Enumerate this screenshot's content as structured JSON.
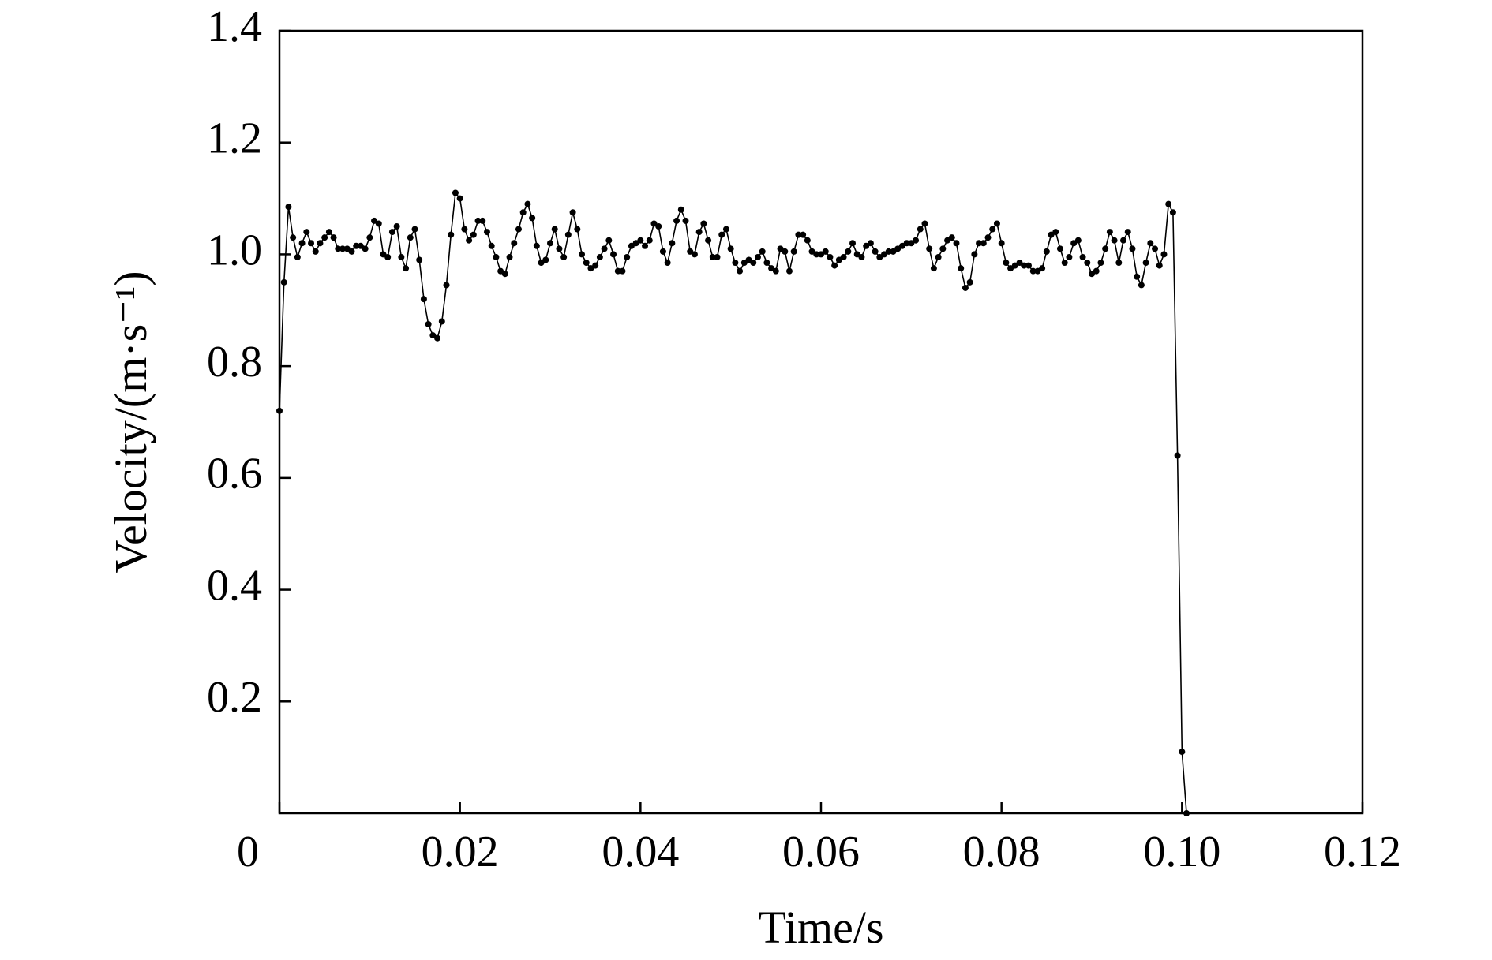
{
  "chart_data": {
    "type": "line",
    "x_label": "Time/s",
    "y_label": "Velocity/(m·s⁻¹)",
    "color": "#000000",
    "marker": true,
    "xlim": [
      0,
      0.12
    ],
    "ylim": [
      0,
      1.4
    ],
    "xticks": [
      0,
      0.02,
      0.04,
      0.06,
      0.08,
      {
        "value": 0.1,
        "label": "0.10"
      },
      0.12
    ],
    "yticks": [
      0.2,
      0.4,
      0.6,
      0.8,
      {
        "value": 1.0,
        "label": "1.0"
      },
      1.2,
      1.4
    ],
    "x": [
      0,
      0.0005,
      0.001,
      0.0015,
      0.002,
      0.0025,
      0.003,
      0.0035,
      0.004,
      0.0045,
      0.005,
      0.0055,
      0.006,
      0.0065,
      0.007,
      0.0075,
      0.008,
      0.0085,
      0.009,
      0.0095,
      0.01,
      0.0105,
      0.011,
      0.0115,
      0.012,
      0.0125,
      0.013,
      0.0135,
      0.014,
      0.0145,
      0.015,
      0.0155,
      0.016,
      0.0165,
      0.017,
      0.0175,
      0.018,
      0.0185,
      0.019,
      0.0195,
      0.02,
      0.0205,
      0.021,
      0.0215,
      0.022,
      0.0225,
      0.023,
      0.0235,
      0.024,
      0.0245,
      0.025,
      0.0255,
      0.026,
      0.0265,
      0.027,
      0.0275,
      0.028,
      0.0285,
      0.029,
      0.0295,
      0.03,
      0.0305,
      0.031,
      0.0315,
      0.032,
      0.0325,
      0.033,
      0.0335,
      0.034,
      0.0345,
      0.035,
      0.0355,
      0.036,
      0.0365,
      0.037,
      0.0375,
      0.038,
      0.0385,
      0.039,
      0.0395,
      0.04,
      0.0405,
      0.041,
      0.0415,
      0.042,
      0.0425,
      0.043,
      0.0435,
      0.044,
      0.0445,
      0.045,
      0.0455,
      0.046,
      0.0465,
      0.047,
      0.0475,
      0.048,
      0.0485,
      0.049,
      0.0495,
      0.05,
      0.0505,
      0.051,
      0.0515,
      0.052,
      0.0525,
      0.053,
      0.0535,
      0.054,
      0.0545,
      0.055,
      0.0555,
      0.056,
      0.0565,
      0.057,
      0.0575,
      0.058,
      0.0585,
      0.059,
      0.0595,
      0.06,
      0.0605,
      0.061,
      0.0615,
      0.062,
      0.0625,
      0.063,
      0.0635,
      0.064,
      0.0645,
      0.065,
      0.0655,
      0.066,
      0.0665,
      0.067,
      0.0675,
      0.068,
      0.0685,
      0.069,
      0.0695,
      0.07,
      0.0705,
      0.071,
      0.0715,
      0.072,
      0.0725,
      0.073,
      0.0735,
      0.074,
      0.0745,
      0.075,
      0.0755,
      0.076,
      0.0765,
      0.077,
      0.0775,
      0.078,
      0.0785,
      0.079,
      0.0795,
      0.08,
      0.0805,
      0.081,
      0.0815,
      0.082,
      0.0825,
      0.083,
      0.0835,
      0.084,
      0.0845,
      0.085,
      0.0855,
      0.086,
      0.0865,
      0.087,
      0.0875,
      0.088,
      0.0885,
      0.089,
      0.0895,
      0.09,
      0.0905,
      0.091,
      0.0915,
      0.092,
      0.0925,
      0.093,
      0.0935,
      0.094,
      0.0945,
      0.095,
      0.0955,
      0.096,
      0.0965,
      0.097,
      0.0975,
      0.098,
      0.0985,
      0.099,
      0.0995,
      0.1,
      0.1005
    ],
    "values": [
      0.72,
      0.95,
      1.085,
      1.03,
      0.995,
      1.02,
      1.04,
      1.02,
      1.005,
      1.02,
      1.03,
      1.04,
      1.03,
      1.01,
      1.01,
      1.01,
      1.005,
      1.015,
      1.015,
      1.01,
      1.03,
      1.06,
      1.055,
      1.0,
      0.995,
      1.04,
      1.05,
      0.995,
      0.975,
      1.03,
      1.045,
      0.99,
      0.92,
      0.875,
      0.855,
      0.85,
      0.88,
      0.945,
      1.035,
      1.11,
      1.1,
      1.045,
      1.025,
      1.035,
      1.06,
      1.06,
      1.04,
      1.015,
      0.995,
      0.97,
      0.965,
      0.995,
      1.02,
      1.045,
      1.075,
      1.09,
      1.065,
      1.015,
      0.985,
      0.99,
      1.02,
      1.045,
      1.01,
      0.995,
      1.035,
      1.075,
      1.045,
      1.0,
      0.985,
      0.975,
      0.98,
      0.995,
      1.01,
      1.025,
      1.0,
      0.97,
      0.97,
      0.995,
      1.015,
      1.02,
      1.025,
      1.015,
      1.025,
      1.055,
      1.05,
      1.005,
      0.985,
      1.02,
      1.06,
      1.08,
      1.06,
      1.005,
      1.0,
      1.04,
      1.055,
      1.025,
      0.995,
      0.995,
      1.035,
      1.045,
      1.01,
      0.985,
      0.97,
      0.985,
      0.99,
      0.985,
      0.995,
      1.005,
      0.985,
      0.975,
      0.97,
      1.01,
      1.005,
      0.97,
      1.005,
      1.035,
      1.035,
      1.025,
      1.005,
      1.0,
      1.0,
      1.005,
      0.995,
      0.98,
      0.99,
      0.995,
      1.005,
      1.02,
      1.0,
      0.995,
      1.015,
      1.02,
      1.005,
      0.995,
      1.0,
      1.005,
      1.005,
      1.01,
      1.015,
      1.02,
      1.02,
      1.025,
      1.045,
      1.055,
      1.01,
      0.975,
      0.995,
      1.01,
      1.025,
      1.03,
      1.02,
      0.975,
      0.94,
      0.95,
      1.0,
      1.02,
      1.02,
      1.03,
      1.045,
      1.055,
      1.02,
      0.985,
      0.975,
      0.98,
      0.985,
      0.98,
      0.98,
      0.97,
      0.97,
      0.975,
      1.005,
      1.035,
      1.04,
      1.01,
      0.985,
      0.995,
      1.02,
      1.025,
      0.995,
      0.985,
      0.965,
      0.97,
      0.985,
      1.01,
      1.04,
      1.025,
      0.985,
      1.025,
      1.04,
      1.01,
      0.96,
      0.945,
      0.985,
      1.02,
      1.01,
      0.98,
      1.0,
      1.09,
      1.075,
      0.64,
      0.11,
      0
    ]
  }
}
